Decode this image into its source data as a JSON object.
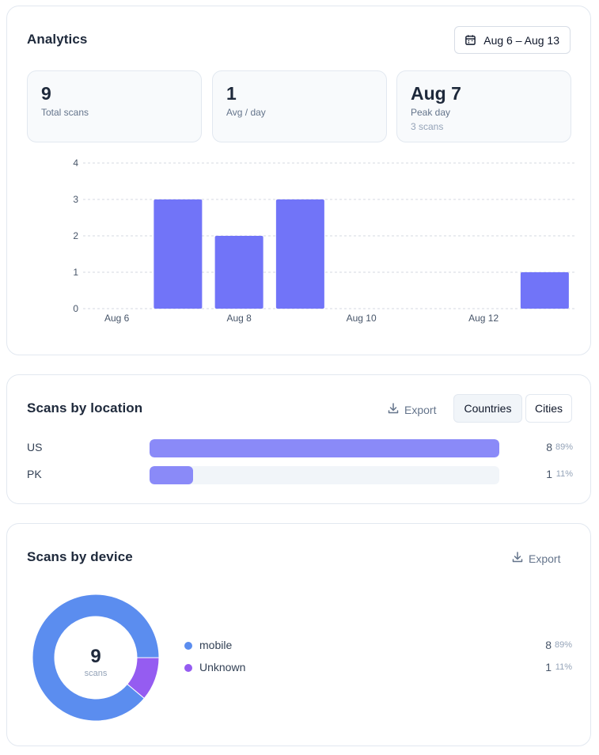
{
  "analytics": {
    "title": "Analytics",
    "date_range": "Aug 6 – Aug 13",
    "stats": {
      "total": {
        "value": "9",
        "label": "Total scans"
      },
      "avg": {
        "value": "1",
        "label": "Avg / day"
      },
      "peak": {
        "value": "Aug 7",
        "label": "Peak day",
        "sub": "3 scans"
      }
    }
  },
  "chart_data": {
    "type": "bar",
    "categories": [
      "Aug 6",
      "Aug 7",
      "Aug 8",
      "Aug 9",
      "Aug 10",
      "Aug 11",
      "Aug 12",
      "Aug 13"
    ],
    "x_tick_labels": [
      "Aug 6",
      "Aug 8",
      "Aug 10",
      "Aug 12"
    ],
    "values": [
      0,
      3,
      2,
      3,
      0,
      0,
      0,
      1
    ],
    "y_ticks": [
      0,
      1,
      2,
      3,
      4
    ],
    "ylim": [
      0,
      4
    ],
    "grid": true,
    "bar_color": "#7174f8"
  },
  "location": {
    "title": "Scans by location",
    "export_label": "Export",
    "tabs": {
      "countries": "Countries",
      "cities": "Cities"
    },
    "rows": [
      {
        "name": "US",
        "count": "8",
        "pct": "89%",
        "fraction": 1.0
      },
      {
        "name": "PK",
        "count": "1",
        "pct": "11%",
        "fraction": 0.125
      }
    ],
    "bar_color": "#8a8af8"
  },
  "device": {
    "title": "Scans by device",
    "export_label": "Export",
    "total": "9",
    "total_label": "scans",
    "items": [
      {
        "name": "mobile",
        "count": "8",
        "pct": "89%",
        "value": 8,
        "color": "#5b8def"
      },
      {
        "name": "Unknown",
        "count": "1",
        "pct": "11%",
        "value": 1,
        "color": "#955cf1"
      }
    ]
  }
}
